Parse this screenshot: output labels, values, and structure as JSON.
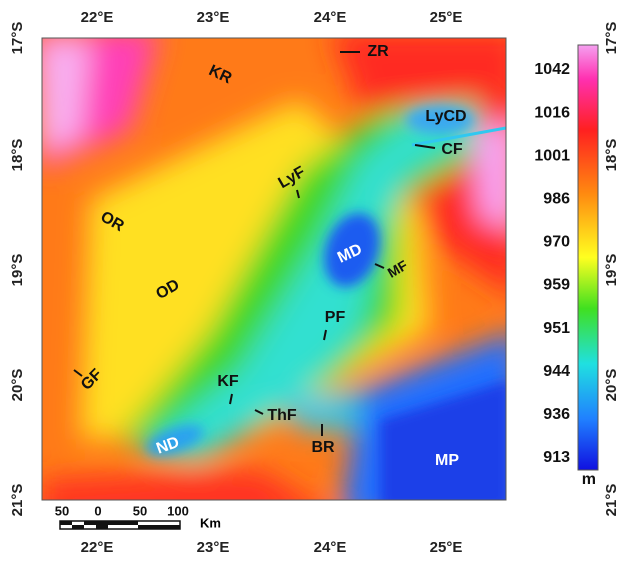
{
  "map": {
    "longitude_labels": [
      "22°E",
      "23°E",
      "24°E",
      "25°E"
    ],
    "latitude_labels": [
      "17°S",
      "18°S",
      "19°S",
      "20°S",
      "21°S"
    ],
    "features": [
      "ZR",
      "KR",
      "LyCD",
      "CF",
      "LyF",
      "OR",
      "MD",
      "MF",
      "OD",
      "PF",
      "GF",
      "KF",
      "ThF",
      "ND",
      "BR",
      "MP"
    ],
    "colorbar": {
      "labels": [
        1042,
        1016,
        1001,
        986,
        970,
        959,
        951,
        944,
        936,
        913
      ],
      "unit": "m"
    },
    "scale_bar": {
      "labels": [
        50,
        0,
        50,
        100
      ],
      "unit": "Km"
    }
  }
}
